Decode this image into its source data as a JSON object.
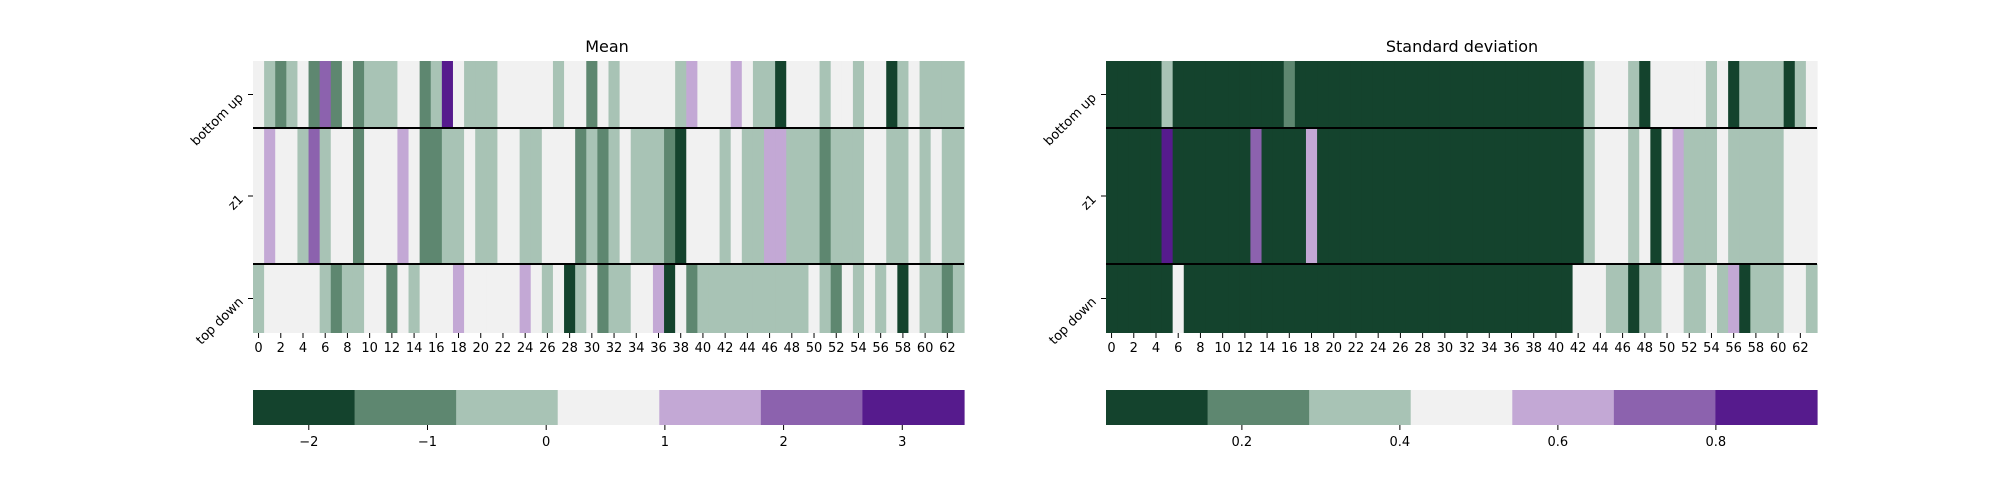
{
  "colors": {
    "palette": [
      "#14432d",
      "#5e8770",
      "#a8c3b5",
      "#f1f1f1",
      "#c3a8d5",
      "#8c62ae",
      "#561b8d"
    ]
  },
  "chart_data": [
    {
      "type": "heatmap",
      "title": "Mean",
      "rows": [
        "bottom up",
        "z1",
        "top down"
      ],
      "x_ticks": [
        "0",
        "2",
        "4",
        "6",
        "8",
        "10",
        "12",
        "14",
        "16",
        "18",
        "20",
        "22",
        "24",
        "26",
        "28",
        "30",
        "32",
        "34",
        "36",
        "38",
        "40",
        "42",
        "44",
        "46",
        "48",
        "50",
        "52",
        "54",
        "56",
        "58",
        "60",
        "62"
      ],
      "columns": 64,
      "levels": [
        [
          3,
          2,
          1,
          2,
          3,
          1,
          5,
          1,
          3,
          1,
          2,
          2,
          2,
          3,
          3,
          1,
          2,
          6,
          3,
          2,
          2,
          2,
          3,
          3,
          3,
          3,
          3,
          2,
          3,
          3,
          1,
          3,
          2,
          3,
          3,
          3,
          3,
          3,
          2,
          4,
          3,
          3,
          3,
          4,
          3,
          2,
          2,
          0,
          3,
          3,
          3,
          2,
          3,
          3,
          2,
          3,
          3,
          0,
          2,
          3,
          2,
          2,
          2,
          2
        ],
        [
          3,
          4,
          3,
          3,
          2,
          5,
          2,
          3,
          3,
          1,
          3,
          3,
          3,
          4,
          3,
          1,
          1,
          2,
          2,
          3,
          2,
          2,
          3,
          3,
          2,
          2,
          3,
          3,
          3,
          1,
          2,
          1,
          2,
          3,
          2,
          2,
          2,
          1,
          0,
          3,
          3,
          3,
          2,
          3,
          2,
          2,
          4,
          4,
          2,
          2,
          2,
          1,
          2,
          2,
          2,
          3,
          3,
          2,
          2,
          3,
          2,
          3,
          2,
          2
        ],
        [
          2,
          3,
          3,
          3,
          3,
          3,
          2,
          1,
          2,
          2,
          3,
          3,
          1,
          3,
          2,
          3,
          3,
          3,
          4,
          3,
          3,
          3,
          3,
          3,
          4,
          3,
          2,
          3,
          0,
          2,
          3,
          1,
          2,
          2,
          3,
          3,
          4,
          0,
          3,
          1,
          2,
          2,
          2,
          2,
          2,
          2,
          2,
          2,
          2,
          2,
          3,
          2,
          1,
          3,
          2,
          3,
          2,
          3,
          0,
          3,
          2,
          2,
          1,
          2
        ]
      ],
      "colorbar": {
        "ticks": [
          -2,
          -1,
          0,
          1,
          2,
          3
        ],
        "range": [
          -2.47,
          3.52
        ]
      }
    },
    {
      "type": "heatmap",
      "title": "Standard deviation",
      "rows": [
        "bottom up",
        "z1",
        "top down"
      ],
      "x_ticks": [
        "0",
        "2",
        "4",
        "6",
        "8",
        "10",
        "12",
        "14",
        "16",
        "18",
        "20",
        "22",
        "24",
        "26",
        "28",
        "30",
        "32",
        "34",
        "36",
        "38",
        "40",
        "42",
        "44",
        "46",
        "48",
        "50",
        "52",
        "54",
        "56",
        "58",
        "60",
        "62"
      ],
      "columns": 64,
      "levels": [
        [
          0,
          0,
          0,
          0,
          0,
          2,
          0,
          0,
          0,
          0,
          0,
          0,
          0,
          0,
          0,
          0,
          1,
          0,
          0,
          0,
          0,
          0,
          0,
          0,
          0,
          0,
          0,
          0,
          0,
          0,
          0,
          0,
          0,
          0,
          0,
          0,
          0,
          0,
          0,
          0,
          0,
          0,
          0,
          2,
          3,
          3,
          3,
          2,
          0,
          3,
          3,
          3,
          3,
          3,
          2,
          3,
          0,
          2,
          2,
          2,
          2,
          0,
          2,
          3
        ],
        [
          0,
          0,
          0,
          0,
          0,
          6,
          0,
          0,
          0,
          0,
          0,
          0,
          0,
          5,
          0,
          0,
          0,
          0,
          4,
          0,
          0,
          0,
          0,
          0,
          0,
          0,
          0,
          0,
          0,
          0,
          0,
          0,
          0,
          0,
          0,
          0,
          0,
          0,
          0,
          0,
          0,
          0,
          0,
          2,
          3,
          3,
          3,
          2,
          3,
          0,
          3,
          4,
          2,
          2,
          2,
          3,
          2,
          2,
          2,
          2,
          2,
          3,
          3,
          3
        ],
        [
          0,
          0,
          0,
          0,
          0,
          0,
          3,
          0,
          0,
          0,
          0,
          0,
          0,
          0,
          0,
          0,
          0,
          0,
          0,
          0,
          0,
          0,
          0,
          0,
          0,
          0,
          0,
          0,
          0,
          0,
          0,
          0,
          0,
          0,
          0,
          0,
          0,
          0,
          0,
          0,
          0,
          0,
          3,
          3,
          3,
          2,
          2,
          0,
          2,
          2,
          3,
          3,
          2,
          2,
          3,
          2,
          4,
          0,
          2,
          2,
          2,
          3,
          3,
          2
        ]
      ],
      "colorbar": {
        "ticks": [
          0.2,
          0.4,
          0.6,
          0.8
        ],
        "range": [
          0.028,
          0.928
        ]
      }
    }
  ]
}
